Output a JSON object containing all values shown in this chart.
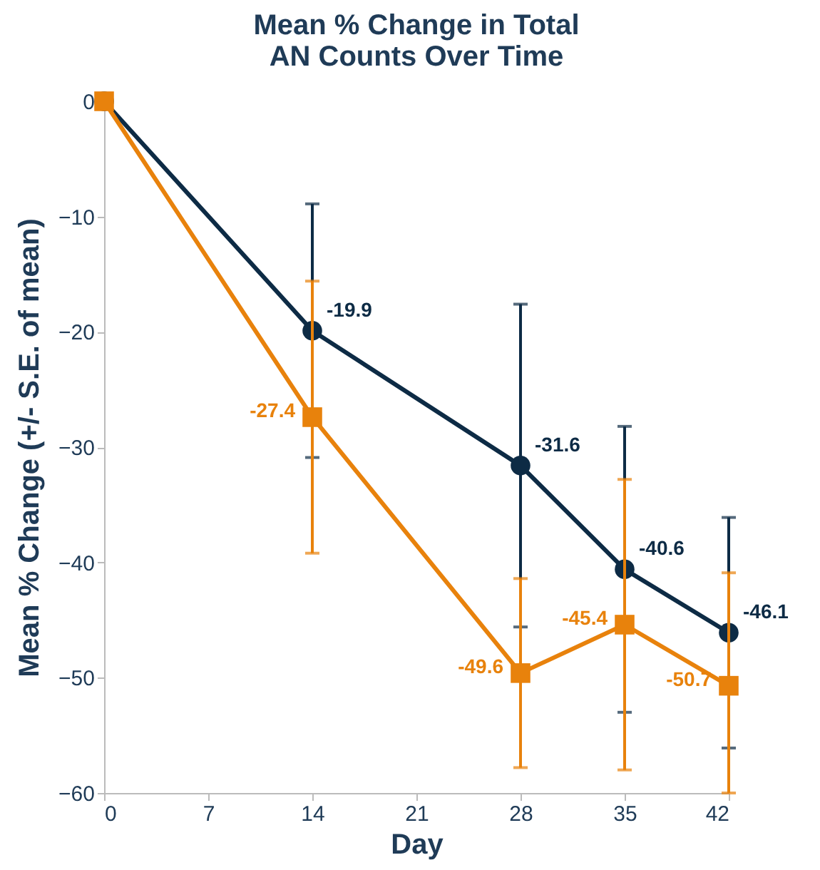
{
  "chart_data": {
    "type": "line",
    "title": "Mean % Change in Total\nAN Counts Over Time",
    "xlabel": "Day",
    "ylabel": "Mean % Change (+/- S.E. of mean)",
    "x": [
      0,
      14,
      28,
      35,
      42
    ],
    "series": [
      {
        "color": "#0d2b45",
        "marker": "circle",
        "values": [
          0,
          -19.9,
          -31.6,
          -40.6,
          -46.1
        ],
        "value_labels": [
          null,
          "-19.9",
          "-31.6",
          "-40.6",
          "-46.1"
        ],
        "errors": [
          null,
          11,
          14,
          12.4,
          10
        ]
      },
      {
        "color": "#e8820c",
        "marker": "square",
        "values": [
          0,
          -27.4,
          -49.6,
          -45.4,
          -50.7
        ],
        "value_labels": [
          null,
          "-27.4",
          "-49.6",
          "-45.4",
          "-50.7"
        ],
        "errors": [
          null,
          11.8,
          8.2,
          12.6,
          [
            -60,
            -40.9
          ]
        ]
      }
    ],
    "xlim": [
      0,
      42
    ],
    "xticks": [
      0,
      7,
      14,
      21,
      28,
      35,
      42
    ],
    "ylim": [
      -60,
      0
    ],
    "yticks": [
      0,
      -10,
      -20,
      -30,
      -40,
      -50,
      -60
    ],
    "grid": false
  }
}
